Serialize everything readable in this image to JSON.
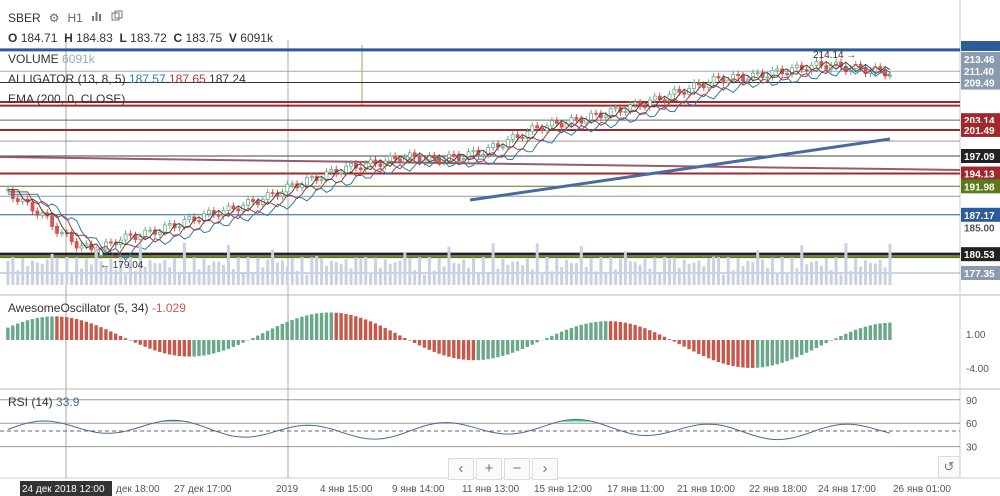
{
  "header": {
    "symbol": "SBER",
    "interval": "H1",
    "ohlc": {
      "o_label": "O",
      "o": "184.71",
      "h_label": "H",
      "h": "184.83",
      "l_label": "L",
      "l": "183.72",
      "c_label": "C",
      "c": "183.75",
      "v_label": "V",
      "v": "6091k"
    }
  },
  "indicators": {
    "volume": {
      "name": "VOLUME",
      "value": "6091k"
    },
    "alligator": {
      "name": "ALLIGATOR (13, 8, 5)",
      "v1": "187.57",
      "v2": "187.65",
      "v3": "187.24"
    },
    "ema": {
      "name": "EMA (200, 0, CLOSE)"
    }
  },
  "price_axis": {
    "labels": [
      "213.46",
      "211.40",
      "209.49",
      "203.14",
      "201.49",
      "197.09",
      "194.13",
      "191.98",
      "187.17",
      "185.00",
      "180.53",
      "177.35"
    ],
    "colors": {
      "blue": "#2b5b9b",
      "red": "#a0282d",
      "green": "#5a7a1a",
      "dark": "#222222",
      "gray": "#8a9bb0"
    }
  },
  "annotations": {
    "high": "214.14",
    "low": "179.04"
  },
  "oscillator": {
    "name": "AwesomeOscillator (5, 34)",
    "value": "-1.029",
    "axis": [
      "1.00",
      "-4.00"
    ]
  },
  "rsi": {
    "name": "RSI (14)",
    "value": "33.9",
    "axis": [
      "90",
      "60",
      "30"
    ]
  },
  "time_axis": {
    "labels": [
      "24 дек 2018 12:00",
      "дек 18:00",
      "27 дек 17:00",
      "2019",
      "4 янв 15:00",
      "9 янв 14:00",
      "11 янв 13:00",
      "15 янв 12:00",
      "17 янв 11:00",
      "21 янв 10:00",
      "22 янв 18:00",
      "24 янв 17:00",
      "26 янв 01:00"
    ]
  },
  "controls": {
    "prev": "‹",
    "zoom_in": "+",
    "zoom_out": "−",
    "next": "›",
    "reset": "↺"
  },
  "colors": {
    "bull": "#6aaa8a",
    "bear": "#d2574a",
    "ao_up": "#6aa88a",
    "ao_down": "#c9584c",
    "rsi_line": "#4a6a9a",
    "rsi_fill": "#4fd26a"
  }
}
